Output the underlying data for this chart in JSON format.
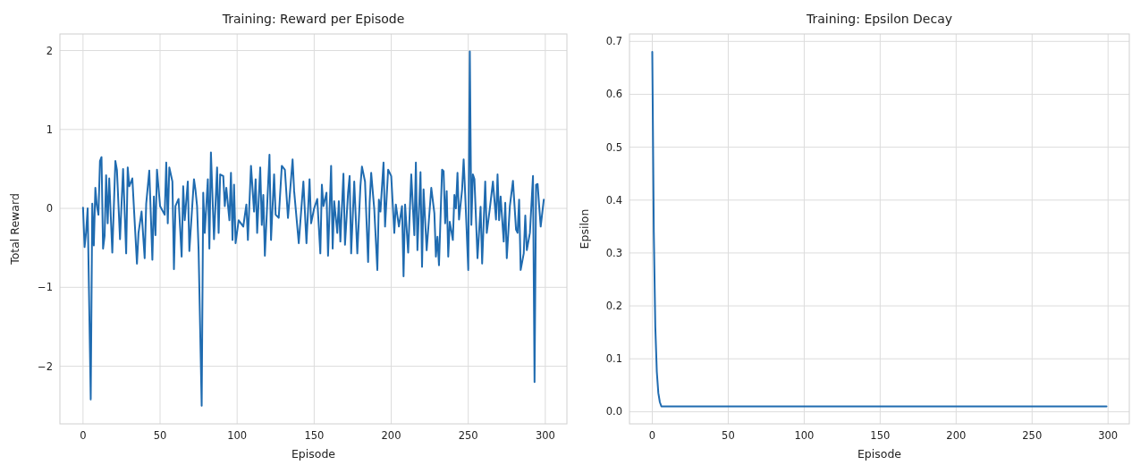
{
  "chart_data": [
    {
      "type": "line",
      "title": "Training: Reward per Episode",
      "xlabel": "Episode",
      "ylabel": "Total Reward",
      "xlim": [
        -15,
        314
      ],
      "ylim": [
        -2.73,
        2.21
      ],
      "xticks": [
        0,
        50,
        100,
        150,
        200,
        250,
        300
      ],
      "yticks": [
        -2,
        -1,
        0,
        1,
        2
      ],
      "grid": true,
      "x": [
        0,
        1,
        2,
        3,
        5,
        6,
        7,
        8,
        9,
        10,
        11,
        12,
        13,
        14,
        15,
        16,
        17,
        19,
        21,
        22,
        24,
        26,
        28,
        29,
        30,
        32,
        35,
        36,
        38,
        40,
        41,
        43,
        45,
        46,
        47,
        48,
        50,
        53,
        54,
        55,
        56,
        58,
        59,
        60,
        62,
        64,
        65,
        66,
        68,
        69,
        72,
        73,
        74,
        75,
        77,
        78,
        79,
        81,
        82,
        83,
        85,
        87,
        88,
        89,
        91,
        92,
        93,
        95,
        96,
        97,
        98,
        99,
        101,
        104,
        106,
        107,
        109,
        111,
        112,
        113,
        115,
        116,
        117,
        118,
        121,
        122,
        124,
        125,
        127,
        129,
        131,
        133,
        136,
        137,
        140,
        143,
        145,
        147,
        148,
        150,
        152,
        154,
        155,
        156,
        158,
        159,
        161,
        162,
        163,
        165,
        166,
        167,
        169,
        170,
        172,
        173,
        174,
        176,
        178,
        180,
        181,
        183,
        185,
        186,
        187,
        189,
        191,
        192,
        193,
        195,
        196,
        198,
        200,
        201,
        202,
        203,
        205,
        207,
        208,
        209,
        211,
        213,
        215,
        216,
        217,
        219,
        220,
        221,
        223,
        226,
        228,
        229,
        230,
        231,
        233,
        234,
        235,
        236,
        237,
        238,
        240,
        241,
        242,
        243,
        244,
        246,
        247,
        248,
        250,
        251,
        252,
        253,
        254,
        256,
        258,
        259,
        261,
        262,
        264,
        266,
        268,
        269,
        270,
        271,
        273,
        274,
        275,
        277,
        279,
        281,
        282,
        283,
        284,
        286,
        287,
        288,
        290,
        292,
        293,
        294,
        295,
        296,
        297,
        299
      ],
      "series": [
        {
          "color": "#1f6bb0",
          "values": [
            0.01,
            -0.49,
            -0.3,
            0.0,
            -2.42,
            0.06,
            -0.47,
            0.26,
            0.03,
            -0.08,
            0.6,
            0.65,
            -0.51,
            -0.35,
            0.42,
            -0.19,
            0.38,
            -0.56,
            0.6,
            0.49,
            -0.39,
            0.5,
            -0.57,
            0.52,
            0.28,
            0.38,
            -0.7,
            -0.31,
            -0.04,
            -0.63,
            0.06,
            0.48,
            -0.65,
            0.15,
            -0.34,
            0.49,
            0.03,
            -0.08,
            0.58,
            -0.19,
            0.52,
            0.34,
            -0.77,
            0.03,
            0.12,
            -0.61,
            0.28,
            -0.15,
            0.34,
            -0.54,
            0.37,
            0.23,
            0.03,
            -0.53,
            -2.5,
            0.2,
            -0.31,
            0.37,
            -0.51,
            0.71,
            -0.39,
            0.52,
            -0.31,
            0.43,
            0.41,
            0.03,
            0.26,
            -0.15,
            0.45,
            -0.4,
            0.3,
            -0.44,
            -0.15,
            -0.23,
            0.05,
            -0.4,
            0.54,
            -0.04,
            0.37,
            -0.31,
            0.52,
            -0.21,
            0.17,
            -0.6,
            0.68,
            -0.4,
            0.43,
            -0.08,
            -0.12,
            0.54,
            0.49,
            -0.12,
            0.62,
            0.22,
            -0.44,
            0.34,
            -0.44,
            0.37,
            -0.19,
            0.0,
            0.12,
            -0.57,
            0.3,
            0.03,
            0.2,
            -0.6,
            0.54,
            -0.51,
            0.09,
            -0.31,
            0.09,
            -0.42,
            0.44,
            -0.46,
            0.2,
            0.41,
            -0.57,
            0.34,
            -0.57,
            0.28,
            0.53,
            0.34,
            -0.68,
            0.07,
            0.45,
            -0.01,
            -0.78,
            0.11,
            -0.04,
            0.58,
            -0.23,
            0.49,
            0.41,
            0.05,
            -0.31,
            0.05,
            -0.23,
            0.03,
            -0.86,
            0.05,
            -0.56,
            0.43,
            -0.34,
            0.58,
            -0.53,
            0.46,
            -0.74,
            0.24,
            -0.53,
            0.26,
            -0.06,
            -0.61,
            -0.36,
            -0.72,
            0.49,
            0.47,
            -0.19,
            0.22,
            -0.61,
            -0.17,
            -0.4,
            0.17,
            0.0,
            0.45,
            -0.14,
            0.24,
            0.62,
            0.18,
            -0.78,
            1.99,
            -0.21,
            0.43,
            0.37,
            -0.63,
            0.02,
            -0.7,
            0.34,
            -0.31,
            0.0,
            0.34,
            -0.14,
            0.43,
            -0.15,
            0.15,
            -0.42,
            0.07,
            -0.63,
            0.03,
            0.35,
            -0.27,
            -0.31,
            0.11,
            -0.78,
            -0.57,
            -0.09,
            -0.53,
            -0.31,
            0.41,
            -2.2,
            0.3,
            0.31,
            0.03,
            -0.23,
            0.11
          ]
        }
      ]
    },
    {
      "type": "line",
      "title": "Training: Epsilon Decay",
      "xlabel": "Episode",
      "ylabel": "Epsilon",
      "xlim": [
        -15,
        314
      ],
      "ylim": [
        -0.023,
        0.714
      ],
      "xticks": [
        0,
        50,
        100,
        150,
        200,
        250,
        300
      ],
      "yticks": [
        {
          "value": 0,
          "label": "0.0"
        },
        {
          "value": 0.1,
          "label": "0.1"
        },
        {
          "value": 0.2,
          "label": "0.2"
        },
        {
          "value": 0.3,
          "label": "0.3"
        },
        {
          "value": 0.4,
          "label": "0.4"
        },
        {
          "value": 0.5,
          "label": "0.5"
        },
        {
          "value": 0.6,
          "label": "0.6"
        },
        {
          "value": 0.7,
          "label": "0.7"
        }
      ],
      "grid": true,
      "x": [
        0,
        1,
        2,
        3,
        4,
        5,
        6,
        299
      ],
      "series": [
        {
          "color": "#1f6bb0",
          "values": [
            0.68,
            0.34,
            0.16,
            0.075,
            0.035,
            0.018,
            0.01,
            0.01
          ]
        }
      ]
    }
  ]
}
